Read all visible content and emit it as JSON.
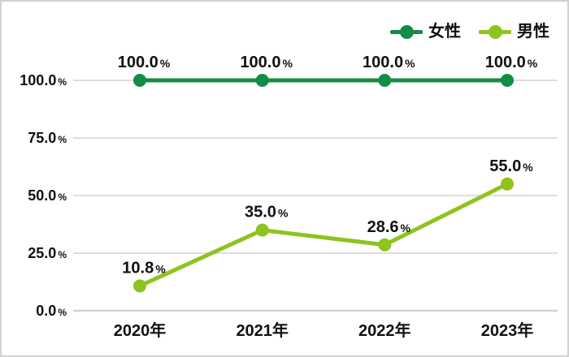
{
  "chart_data": {
    "type": "line",
    "categories": [
      "2020年",
      "2021年",
      "2022年",
      "2023年"
    ],
    "series": [
      {
        "key": "female",
        "name": "女性",
        "color": "#138c46",
        "values": [
          100.0,
          100.0,
          100.0,
          100.0
        ],
        "point_labels": [
          "100.0",
          "100.0",
          "100.0",
          "100.0"
        ]
      },
      {
        "key": "male",
        "name": "男性",
        "color": "#8fc31f",
        "values": [
          10.8,
          35.0,
          28.6,
          55.0
        ],
        "point_labels": [
          "10.8",
          "35.0",
          "28.6",
          "55.0"
        ]
      }
    ],
    "y_ticks": [
      {
        "label": "0.0",
        "value": 0
      },
      {
        "label": "25.0",
        "value": 25
      },
      {
        "label": "50.0",
        "value": 50
      },
      {
        "label": "75.0",
        "value": 75
      },
      {
        "label": "100.0",
        "value": 100
      }
    ],
    "percent_suffix": "%",
    "ylim": [
      0,
      100
    ],
    "grid": true,
    "legend_position": "top-right"
  },
  "colors": {
    "female_series": "#138c46",
    "male_series": "#8fc31f",
    "gridline": "#dedede",
    "zero_axis_line": "#d2d2d2",
    "text": "#111111",
    "border": "#d2d2d2",
    "background": "#ffffff"
  }
}
